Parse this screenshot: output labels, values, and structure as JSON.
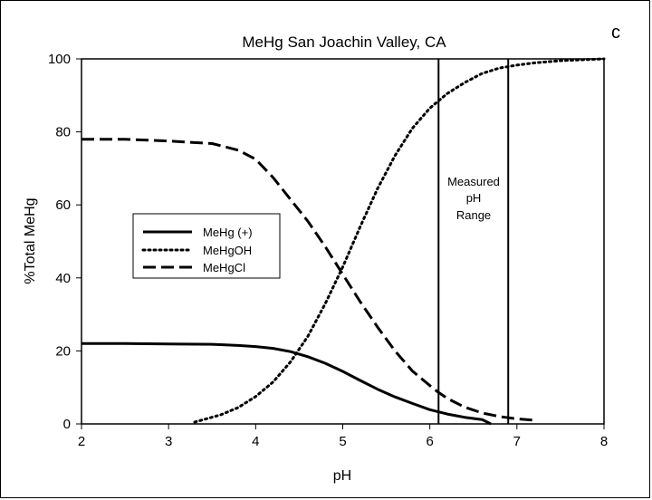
{
  "panel_letter": "c",
  "chart_data": {
    "type": "line",
    "title": "MeHg San Joachin Valley, CA",
    "xlabel": "pH",
    "ylabel": "%Total MeHg",
    "xlim": [
      2,
      8
    ],
    "ylim": [
      0,
      100
    ],
    "xticks": [
      2,
      3,
      4,
      5,
      6,
      7,
      8
    ],
    "yticks": [
      0,
      20,
      40,
      60,
      80,
      100
    ],
    "grid": false,
    "legend_position": "left-middle",
    "series": [
      {
        "name": "MeHg (+)",
        "style": "solid",
        "x": [
          2.0,
          2.5,
          3.0,
          3.5,
          3.8,
          4.0,
          4.2,
          4.4,
          4.6,
          4.8,
          5.0,
          5.2,
          5.4,
          5.6,
          5.8,
          6.0,
          6.1,
          6.2,
          6.4,
          6.6,
          6.7
        ],
        "y": [
          22.0,
          22.0,
          21.9,
          21.8,
          21.5,
          21.2,
          20.7,
          19.8,
          18.4,
          16.6,
          14.4,
          11.9,
          9.5,
          7.4,
          5.6,
          3.9,
          3.3,
          2.7,
          1.8,
          1.2,
          0
        ]
      },
      {
        "name": "MeHgOH",
        "style": "dotted",
        "x": [
          3.3,
          3.6,
          3.8,
          4.0,
          4.2,
          4.4,
          4.6,
          4.8,
          5.0,
          5.2,
          5.4,
          5.6,
          5.8,
          6.0,
          6.1,
          6.2,
          6.4,
          6.6,
          6.8,
          7.0,
          7.2,
          7.5,
          8.0
        ],
        "y": [
          0.5,
          2.5,
          4.5,
          7.5,
          11.5,
          17.0,
          24.0,
          33.0,
          43.0,
          54.0,
          64.5,
          73.5,
          81.0,
          86.5,
          88.5,
          90.5,
          93.5,
          96.0,
          97.5,
          98.3,
          98.9,
          99.5,
          100.0
        ]
      },
      {
        "name": "MeHgCl",
        "style": "dashed",
        "x": [
          2.0,
          2.5,
          3.0,
          3.5,
          3.8,
          4.0,
          4.2,
          4.4,
          4.6,
          4.8,
          5.0,
          5.2,
          5.4,
          5.6,
          5.8,
          6.0,
          6.1,
          6.2,
          6.4,
          6.6,
          6.8,
          7.0,
          7.2
        ],
        "y": [
          78.0,
          78.0,
          77.5,
          76.8,
          75.0,
          72.5,
          67.5,
          61.5,
          55.5,
          48.5,
          41.0,
          33.5,
          26.5,
          20.0,
          14.5,
          10.5,
          8.6,
          7.0,
          4.6,
          3.0,
          2.0,
          1.4,
          1.0
        ]
      }
    ],
    "annotations": {
      "range_label": [
        "Measured",
        "pH",
        "Range"
      ],
      "vertical_lines_x": [
        6.1,
        6.9
      ]
    }
  }
}
